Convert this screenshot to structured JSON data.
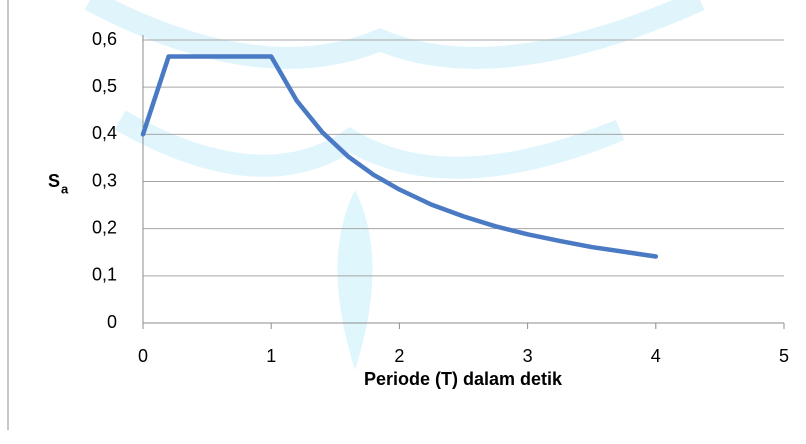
{
  "chart_data": {
    "type": "line",
    "xlabel": "Periode (T) dalam detik",
    "ylabel": "S",
    "ylabel_subscript": "a",
    "x": [
      0,
      0.2,
      1,
      1.2,
      1.4,
      1.6,
      1.8,
      2,
      2.25,
      2.5,
      2.75,
      3,
      3.25,
      3.5,
      3.75,
      4
    ],
    "series": [
      {
        "color": "#4a7ac4",
        "values": [
          0.4,
          0.565,
          0.565,
          0.471,
          0.404,
          0.353,
          0.314,
          0.283,
          0.251,
          0.226,
          0.205,
          0.188,
          0.174,
          0.161,
          0.151,
          0.141
        ]
      }
    ],
    "xlim": [
      0,
      5
    ],
    "xticks": [
      0,
      1,
      2,
      3,
      4,
      5
    ],
    "ylim": [
      0,
      0.6
    ],
    "yticks": [
      0,
      {
        "value": 0.1,
        "label": "0,1"
      },
      {
        "value": 0.2,
        "label": "0,2"
      },
      {
        "value": 0.3,
        "label": "0,3"
      },
      {
        "value": 0.4,
        "label": "0,4"
      },
      {
        "value": 0.5,
        "label": "0,5"
      },
      {
        "value": 0.6,
        "label": "0,6"
      }
    ],
    "grid": true
  }
}
